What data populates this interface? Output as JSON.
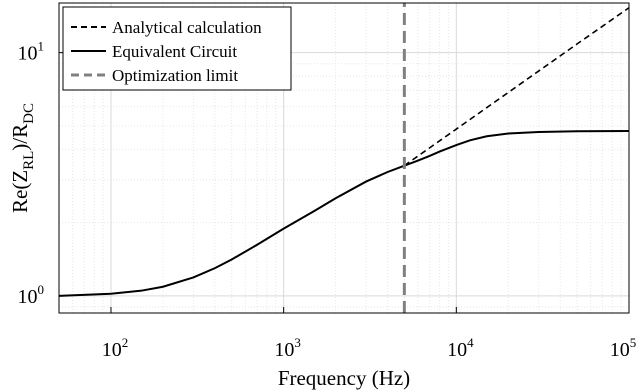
{
  "chart_data": {
    "type": "line",
    "xlabel": "Frequency (Hz)",
    "ylabel_base": "Re(Z",
    "ylabel_sub1": "RL",
    "ylabel_mid": ")/R",
    "ylabel_sub2": "DC",
    "x_scale": "log",
    "y_scale": "log",
    "xlim": [
      50,
      100000
    ],
    "ylim": [
      0.85,
      16
    ],
    "grid": true,
    "legend_position": "top-left",
    "x_ticks": [
      {
        "value": 100,
        "base": "10",
        "exp": "2"
      },
      {
        "value": 1000,
        "base": "10",
        "exp": "3"
      },
      {
        "value": 10000,
        "base": "10",
        "exp": "4"
      },
      {
        "value": 100000,
        "base": "10",
        "exp": "5"
      }
    ],
    "y_ticks": [
      {
        "value": 1,
        "base": "10",
        "exp": "0"
      },
      {
        "value": 10,
        "base": "10",
        "exp": "1"
      }
    ],
    "series": [
      {
        "name": "Analytical calculation",
        "style": "dashed",
        "color": "#000000",
        "x": [
          5000,
          7000,
          10000,
          20000,
          50000,
          100000
        ],
        "y": [
          3.43,
          4.06,
          4.85,
          6.86,
          10.85,
          15.3
        ]
      },
      {
        "name": "Equivalent Circuit",
        "style": "solid",
        "color": "#000000",
        "x": [
          50,
          100,
          150,
          200,
          300,
          400,
          500,
          700,
          1000,
          1500,
          2000,
          3000,
          4000,
          5000,
          6000,
          7000,
          8000,
          10000,
          12000,
          15000,
          20000,
          30000,
          50000,
          100000
        ],
        "y": [
          1.0,
          1.02,
          1.05,
          1.09,
          1.19,
          1.3,
          1.41,
          1.62,
          1.89,
          2.23,
          2.52,
          2.95,
          3.23,
          3.43,
          3.6,
          3.76,
          3.92,
          4.17,
          4.36,
          4.53,
          4.65,
          4.72,
          4.75,
          4.76
        ]
      },
      {
        "name": "Optimization limit",
        "style": "dashed-vertical",
        "color": "#808080",
        "x": [
          5000,
          5000
        ],
        "y": [
          0.85,
          16
        ]
      }
    ]
  }
}
